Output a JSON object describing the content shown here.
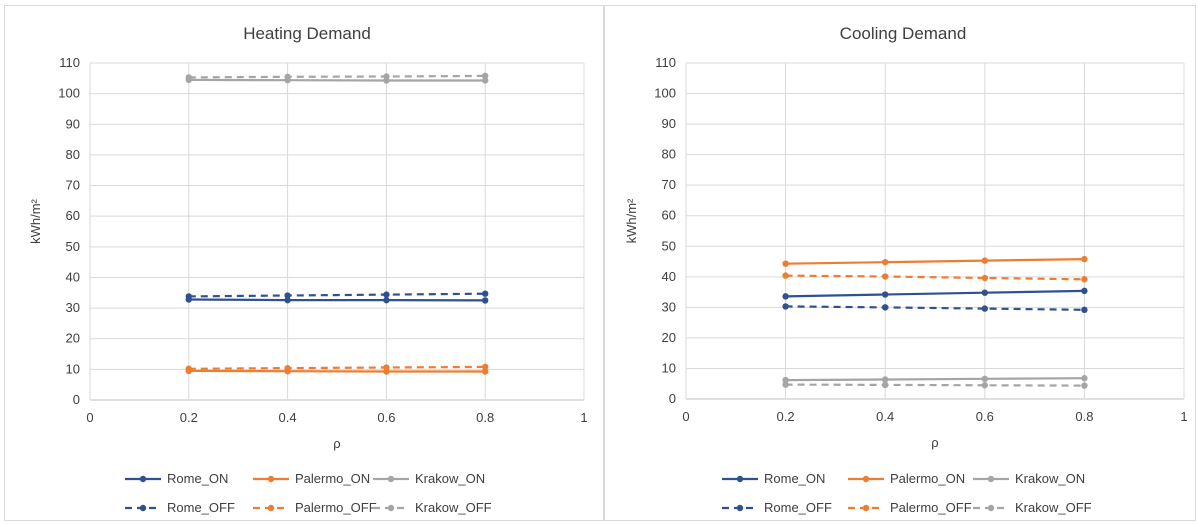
{
  "chart_data": [
    {
      "type": "line",
      "title": "Heating Demand",
      "xlabel": "ρ",
      "ylabel": "kWh/m²",
      "xlim": [
        0,
        1
      ],
      "ylim": [
        0,
        110
      ],
      "x_ticks": [
        "0",
        "0.2",
        "0.4",
        "0.6",
        "0.8",
        "1"
      ],
      "y_ticks": [
        "0",
        "10",
        "20",
        "30",
        "40",
        "50",
        "60",
        "70",
        "80",
        "90",
        "100",
        "110"
      ],
      "grid": true,
      "legend_position": "bottom",
      "x": [
        0.2,
        0.4,
        0.6,
        0.8
      ],
      "series": [
        {
          "name": "Rome_ON",
          "color": "#2f528f",
          "dash": "solid",
          "values": [
            32.8,
            32.6,
            32.6,
            32.5
          ]
        },
        {
          "name": "Palermo_ON",
          "color": "#ed7d31",
          "dash": "solid",
          "values": [
            9.5,
            9.4,
            9.3,
            9.3
          ]
        },
        {
          "name": "Krakow_ON",
          "color": "#a5a5a5",
          "dash": "solid",
          "values": [
            104.5,
            104.4,
            104.3,
            104.3
          ]
        },
        {
          "name": "Rome_OFF",
          "color": "#2f528f",
          "dash": "dashed",
          "values": [
            33.8,
            34.1,
            34.4,
            34.7
          ]
        },
        {
          "name": "Palermo_OFF",
          "color": "#ed7d31",
          "dash": "dashed",
          "values": [
            10.2,
            10.4,
            10.6,
            10.8
          ]
        },
        {
          "name": "Krakow_OFF",
          "color": "#a5a5a5",
          "dash": "dashed",
          "values": [
            105.3,
            105.5,
            105.6,
            105.8
          ]
        }
      ]
    },
    {
      "type": "line",
      "title": "Cooling Demand",
      "xlabel": "ρ",
      "ylabel": "kWh/m²",
      "xlim": [
        0,
        1
      ],
      "ylim": [
        0,
        110
      ],
      "x_ticks": [
        "0",
        "0.2",
        "0.4",
        "0.6",
        "0.8",
        "1"
      ],
      "y_ticks": [
        "0",
        "10",
        "20",
        "30",
        "40",
        "50",
        "60",
        "70",
        "80",
        "90",
        "100",
        "110"
      ],
      "grid": true,
      "legend_position": "bottom",
      "x": [
        0.2,
        0.4,
        0.6,
        0.8
      ],
      "series": [
        {
          "name": "Rome_ON",
          "color": "#2f528f",
          "dash": "solid",
          "values": [
            33.6,
            34.2,
            34.8,
            35.4
          ]
        },
        {
          "name": "Palermo_ON",
          "color": "#ed7d31",
          "dash": "solid",
          "values": [
            44.3,
            44.8,
            45.3,
            45.8
          ]
        },
        {
          "name": "Krakow_ON",
          "color": "#a5a5a5",
          "dash": "solid",
          "values": [
            6.2,
            6.4,
            6.6,
            6.8
          ]
        },
        {
          "name": "Rome_OFF",
          "color": "#2f528f",
          "dash": "dashed",
          "values": [
            30.3,
            30.0,
            29.6,
            29.2
          ]
        },
        {
          "name": "Palermo_OFF",
          "color": "#ed7d31",
          "dash": "dashed",
          "values": [
            40.4,
            40.1,
            39.6,
            39.2
          ]
        },
        {
          "name": "Krakow_OFF",
          "color": "#a5a5a5",
          "dash": "dashed",
          "values": [
            4.7,
            4.6,
            4.5,
            4.4
          ]
        }
      ]
    }
  ]
}
